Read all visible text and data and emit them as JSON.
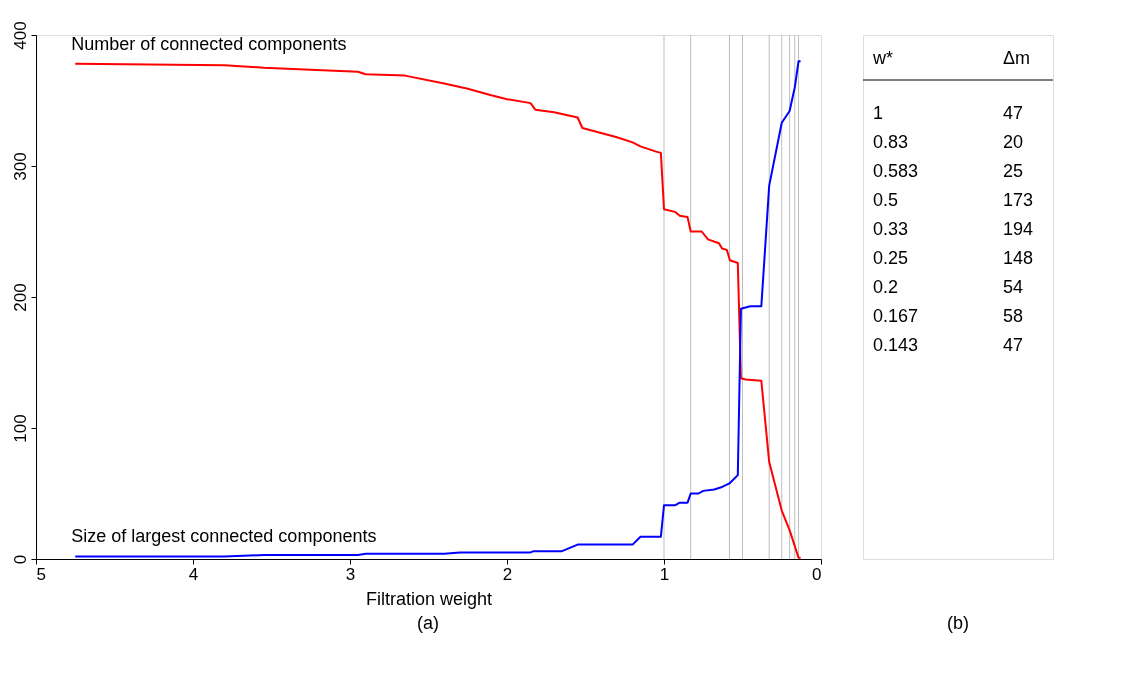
{
  "chart_data": [
    {
      "type": "line",
      "xlabel": "Filtration weight",
      "annotations": [
        "(a)"
      ],
      "xlim": [
        5,
        0
      ],
      "xticks": [
        5,
        4,
        3,
        2,
        1,
        0
      ],
      "ylim": [
        0,
        400
      ],
      "yticks": [
        0,
        100,
        200,
        300,
        400
      ],
      "grid": false,
      "series": [
        {
          "name": "Number of connected components",
          "color": "#ff0000",
          "x": [
            4.75,
            3.8,
            3.55,
            2.95,
            2.9,
            2.65,
            2.4,
            2.25,
            2.1,
            2.0,
            1.85,
            1.82,
            1.7,
            1.55,
            1.52,
            1.3,
            1.2,
            1.15,
            1.05,
            1.02,
            1.0,
            0.93,
            0.9,
            0.85,
            0.83,
            0.76,
            0.72,
            0.65,
            0.63,
            0.6,
            0.58,
            0.53,
            0.51,
            0.48,
            0.38,
            0.33,
            0.25,
            0.2,
            0.143,
            0.13
          ],
          "values": [
            378,
            377,
            375,
            372,
            370,
            369,
            363,
            359,
            354,
            351,
            348,
            343,
            341,
            337,
            329,
            322,
            318,
            315,
            311,
            310,
            267,
            265,
            262,
            261,
            250,
            250,
            244,
            241,
            237,
            236,
            228,
            226,
            138,
            137,
            136,
            74,
            37,
            22,
            1,
            1
          ]
        },
        {
          "name": "Size of largest connected components",
          "color": "#0000ff",
          "x": [
            4.75,
            3.8,
            3.55,
            2.95,
            2.9,
            2.4,
            2.3,
            1.85,
            1.83,
            1.65,
            1.55,
            1.2,
            1.15,
            1.02,
            1.0,
            0.93,
            0.9,
            0.85,
            0.83,
            0.78,
            0.75,
            0.68,
            0.63,
            0.58,
            0.53,
            0.51,
            0.48,
            0.45,
            0.38,
            0.33,
            0.25,
            0.2,
            0.167,
            0.143,
            0.13
          ],
          "values": [
            2,
            2,
            3,
            3,
            4,
            4,
            5,
            5,
            6,
            6,
            11,
            11,
            17,
            17,
            41,
            41,
            43,
            43,
            50,
            50,
            52,
            53,
            55,
            58,
            64,
            191,
            192,
            193,
            193,
            285,
            333,
            342,
            360,
            380,
            380
          ]
        }
      ],
      "ref_lines": [
        {
          "axis": "x",
          "value": 1,
          "color": "#bebebe"
        },
        {
          "axis": "x",
          "value": 0.83,
          "color": "#bebebe"
        },
        {
          "axis": "x",
          "value": 0.583,
          "color": "#bebebe"
        },
        {
          "axis": "x",
          "value": 0.5,
          "color": "#bebebe"
        },
        {
          "axis": "x",
          "value": 0.33,
          "color": "#bebebe"
        },
        {
          "axis": "x",
          "value": 0.25,
          "color": "#bebebe"
        },
        {
          "axis": "x",
          "value": 0.2,
          "color": "#bebebe"
        },
        {
          "axis": "x",
          "value": 0.167,
          "color": "#bebebe"
        },
        {
          "axis": "x",
          "value": 0.143,
          "color": "#bebebe"
        }
      ]
    },
    {
      "type": "other",
      "xlabel": "(b)",
      "annotations": [
        "w*",
        "Δm",
        "1",
        "47",
        "0.83",
        "20",
        "0.583",
        "25",
        "0.5",
        "173",
        "0.33",
        "194",
        "0.25",
        "148",
        "0.2",
        "54",
        "0.167",
        "58",
        "0.143",
        "47"
      ]
    }
  ]
}
